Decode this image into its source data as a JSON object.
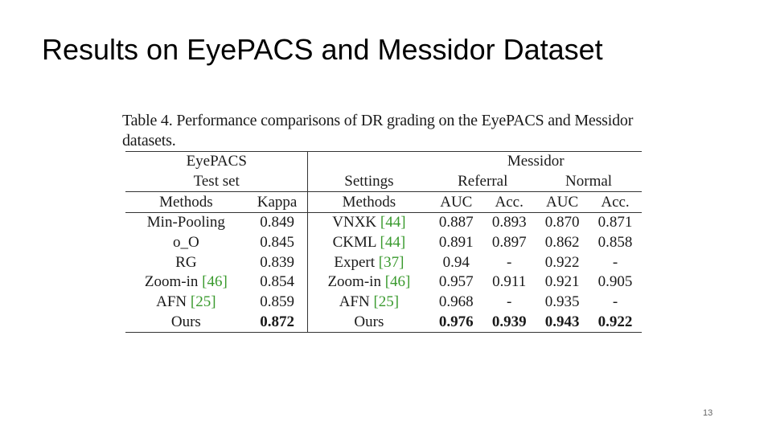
{
  "title": "Results on EyePACS and Messidor Dataset",
  "caption": "Table 4. Performance comparisons of DR grading on the EyePACS and Messidor datasets.",
  "header": {
    "eyepacs": "EyePACS",
    "testset": "Test set",
    "messidor": "Messidor",
    "settings": "Settings",
    "referral": "Referral",
    "normal": "Normal",
    "methods_left": "Methods",
    "kappa": "Kappa",
    "methods_right": "Methods",
    "auc1": "AUC",
    "acc1": "Acc.",
    "auc2": "AUC",
    "acc2": "Acc."
  },
  "rows": [
    {
      "left": {
        "name": "Min-Pooling",
        "cite": ""
      },
      "kappa": "0.849",
      "right": {
        "name": "VNXK",
        "cite": "[44]"
      },
      "ref_auc": "0.887",
      "ref_acc": "0.893",
      "norm_auc": "0.870",
      "norm_acc": "0.871"
    },
    {
      "left": {
        "name": "o_O",
        "cite": ""
      },
      "kappa": "0.845",
      "right": {
        "name": "CKML",
        "cite": "[44]"
      },
      "ref_auc": "0.891",
      "ref_acc": "0.897",
      "norm_auc": "0.862",
      "norm_acc": "0.858"
    },
    {
      "left": {
        "name": "RG",
        "cite": ""
      },
      "kappa": "0.839",
      "right": {
        "name": "Expert",
        "cite": "[37]"
      },
      "ref_auc": "0.94",
      "ref_acc": "-",
      "norm_auc": "0.922",
      "norm_acc": "-"
    },
    {
      "left": {
        "name": "Zoom-in",
        "cite": "[46]"
      },
      "kappa": "0.854",
      "right": {
        "name": "Zoom-in",
        "cite": "[46]"
      },
      "ref_auc": "0.957",
      "ref_acc": "0.911",
      "norm_auc": "0.921",
      "norm_acc": "0.905"
    },
    {
      "left": {
        "name": "AFN",
        "cite": "[25]"
      },
      "kappa": "0.859",
      "right": {
        "name": "AFN",
        "cite": "[25]"
      },
      "ref_auc": "0.968",
      "ref_acc": "-",
      "norm_auc": "0.935",
      "norm_acc": "-"
    },
    {
      "left": {
        "name": "Ours",
        "cite": ""
      },
      "kappa": "0.872",
      "right": {
        "name": "Ours",
        "cite": ""
      },
      "ref_auc": "0.976",
      "ref_acc": "0.939",
      "norm_auc": "0.943",
      "norm_acc": "0.922"
    }
  ],
  "bold_row": "Ours",
  "colors": {
    "citation": "#3a9a2e",
    "text": "#1a1a1a"
  },
  "page_number": "13"
}
